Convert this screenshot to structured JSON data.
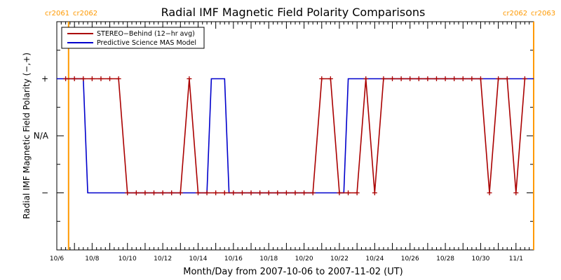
{
  "chart_data": {
    "type": "line",
    "title": "Radial IMF Magnetic Field Polarity Comparisons",
    "xlabel": "Month/Day from 2007-10-06 to 2007-11-02 (UT)",
    "ylabel": "Radial IMF Magnetic Field Polarity (−,+)",
    "x_range": [
      "2007-10-06T00:00",
      "2007-11-02T00:00"
    ],
    "y_categories": [
      "−",
      "N/A",
      "+"
    ],
    "y_category_values": [
      -1,
      0,
      1
    ],
    "ylim": [
      -2,
      2
    ],
    "x_ticks": [
      "2007-10-06",
      "2007-10-07",
      "2007-10-08",
      "2007-10-09",
      "2007-10-10",
      "2007-10-11",
      "2007-10-12",
      "2007-10-13",
      "2007-10-14",
      "2007-10-15",
      "2007-10-16",
      "2007-10-17",
      "2007-10-18",
      "2007-10-19",
      "2007-10-20",
      "2007-10-21",
      "2007-10-22",
      "2007-10-23",
      "2007-10-24",
      "2007-10-25",
      "2007-10-26",
      "2007-10-27",
      "2007-10-28",
      "2007-10-29",
      "2007-10-30",
      "2007-10-31",
      "2007-11-01",
      "2007-11-02"
    ],
    "x_tick_labels": [
      "10/6",
      "",
      "10/8",
      "",
      "10/10",
      "",
      "10/12",
      "",
      "10/14",
      "",
      "10/16",
      "",
      "10/18",
      "",
      "10/20",
      "",
      "10/22",
      "",
      "10/24",
      "",
      "10/26",
      "",
      "10/28",
      "",
      "10/30",
      "",
      "11/1",
      ""
    ],
    "carrington_markers": [
      {
        "x": "2007-10-06T16:00",
        "left_label": "cr2061",
        "right_label": "cr2062"
      },
      {
        "x": "2007-11-02T00:00",
        "left_label": "cr2062",
        "right_label": "cr2063"
      }
    ],
    "legend": {
      "position": "top-left"
    },
    "colors": {
      "stereo": "#aa0000",
      "mas": "#0000cc",
      "carrington": "#ff9900",
      "axes": "#000000"
    },
    "series": [
      {
        "name": "STEREO−Behind (12−hr avg)",
        "color": "#aa0000",
        "marker": "plus",
        "x": [
          "2007-10-06T12:00",
          "2007-10-07T00:00",
          "2007-10-07T12:00",
          "2007-10-08T00:00",
          "2007-10-08T12:00",
          "2007-10-09T00:00",
          "2007-10-09T12:00",
          "2007-10-10T00:00",
          "2007-10-10T12:00",
          "2007-10-11T00:00",
          "2007-10-11T12:00",
          "2007-10-12T00:00",
          "2007-10-12T12:00",
          "2007-10-13T00:00",
          "2007-10-13T12:00",
          "2007-10-14T00:00",
          "2007-10-14T12:00",
          "2007-10-15T00:00",
          "2007-10-15T12:00",
          "2007-10-16T00:00",
          "2007-10-16T12:00",
          "2007-10-17T00:00",
          "2007-10-17T12:00",
          "2007-10-18T00:00",
          "2007-10-18T12:00",
          "2007-10-19T00:00",
          "2007-10-19T12:00",
          "2007-10-20T00:00",
          "2007-10-20T12:00",
          "2007-10-21T00:00",
          "2007-10-21T12:00",
          "2007-10-22T00:00",
          "2007-10-22T12:00",
          "2007-10-23T00:00",
          "2007-10-23T12:00",
          "2007-10-24T00:00",
          "2007-10-24T12:00",
          "2007-10-25T00:00",
          "2007-10-25T12:00",
          "2007-10-26T00:00",
          "2007-10-26T12:00",
          "2007-10-27T00:00",
          "2007-10-27T12:00",
          "2007-10-28T00:00",
          "2007-10-28T12:00",
          "2007-10-29T00:00",
          "2007-10-29T12:00",
          "2007-10-30T00:00",
          "2007-10-30T12:00",
          "2007-10-31T00:00",
          "2007-10-31T12:00",
          "2007-11-01T00:00",
          "2007-11-01T12:00"
        ],
        "y": [
          1,
          1,
          1,
          1,
          1,
          1,
          1,
          -1,
          -1,
          -1,
          -1,
          -1,
          -1,
          -1,
          1,
          -1,
          -1,
          -1,
          -1,
          -1,
          -1,
          -1,
          -1,
          -1,
          -1,
          -1,
          -1,
          -1,
          -1,
          1,
          1,
          -1,
          -1,
          -1,
          1,
          -1,
          1,
          1,
          1,
          1,
          1,
          1,
          1,
          1,
          1,
          1,
          1,
          1,
          -1,
          1,
          1,
          -1,
          1
        ]
      },
      {
        "name": "Predictive Science MAS Model",
        "color": "#0000cc",
        "marker": "none",
        "x": [
          "2007-10-06T00:00",
          "2007-10-07T12:00",
          "2007-10-07T18:00",
          "2007-10-14T12:00",
          "2007-10-14T18:00",
          "2007-10-15T12:00",
          "2007-10-15T18:00",
          "2007-10-22T06:00",
          "2007-10-22T12:00",
          "2007-11-02T00:00"
        ],
        "y": [
          1,
          1,
          -1,
          -1,
          1,
          1,
          -1,
          -1,
          1,
          1
        ]
      }
    ]
  }
}
